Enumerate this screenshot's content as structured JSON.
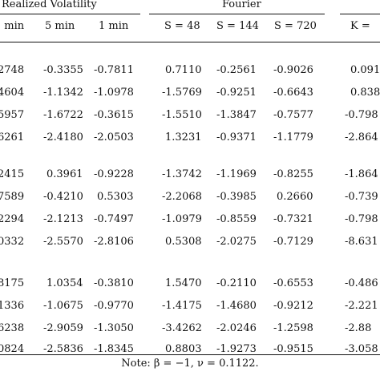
{
  "table": {
    "groups": [
      {
        "label": "Realized Volatility"
      },
      {
        "label": "Fourier"
      }
    ],
    "columns": [
      {
        "label": "min"
      },
      {
        "label": "5 min"
      },
      {
        "label": "1 min"
      },
      {
        "label": "S = 48"
      },
      {
        "label": "S = 144"
      },
      {
        "label": "S = 720"
      },
      {
        "label": "K = "
      }
    ],
    "blocks": [
      {
        "rows": [
          [
            "2748",
            "-0.3355",
            "-0.7811",
            "0.7110",
            "-0.2561",
            "-0.9026",
            "0.091"
          ],
          [
            "4604",
            "-1.1342",
            "-1.0978",
            "-1.5769",
            "-0.9251",
            "-0.6643",
            "0.838"
          ],
          [
            "5957",
            "-1.6722",
            "-0.3615",
            "-1.5510",
            "-1.3847",
            "-0.7577",
            "-0.798"
          ],
          [
            "6261",
            "-2.4180",
            "-2.0503",
            "1.3231",
            "-0.9371",
            "-1.1779",
            "-2.864"
          ]
        ]
      },
      {
        "rows": [
          [
            "2415",
            "0.3961",
            "-0.9228",
            "-1.3742",
            "-1.1969",
            "-0.8255",
            "-1.864"
          ],
          [
            "7589",
            "-0.4210",
            "0.5303",
            "-2.2068",
            "-0.3985",
            "0.2660",
            "-0.739"
          ],
          [
            "2294",
            "-2.1213",
            "-0.7497",
            "-1.0979",
            "-0.8559",
            "-0.7321",
            "-0.798"
          ],
          [
            "0332",
            "-2.5570",
            "-2.8106",
            "0.5308",
            "-2.0275",
            "-0.7129",
            "-8.631"
          ]
        ]
      },
      {
        "rows": [
          [
            "8175",
            "1.0354",
            "-0.3810",
            "1.5470",
            "-0.2110",
            "-0.6553",
            "-0.486"
          ],
          [
            "1336",
            "-1.0675",
            "-0.9770",
            "-1.4175",
            "-1.4680",
            "-0.9212",
            "-2.221"
          ],
          [
            "6238",
            "-2.9059",
            "-1.3050",
            "-3.4262",
            "-2.0246",
            "-1.2598",
            "-2.88"
          ],
          [
            "0824",
            "-2.5836",
            "-1.8345",
            "0.8803",
            "-1.9273",
            "-0.9515",
            "-3.058"
          ]
        ]
      }
    ],
    "note": "Note: β = −1, ν = 0.1122."
  }
}
